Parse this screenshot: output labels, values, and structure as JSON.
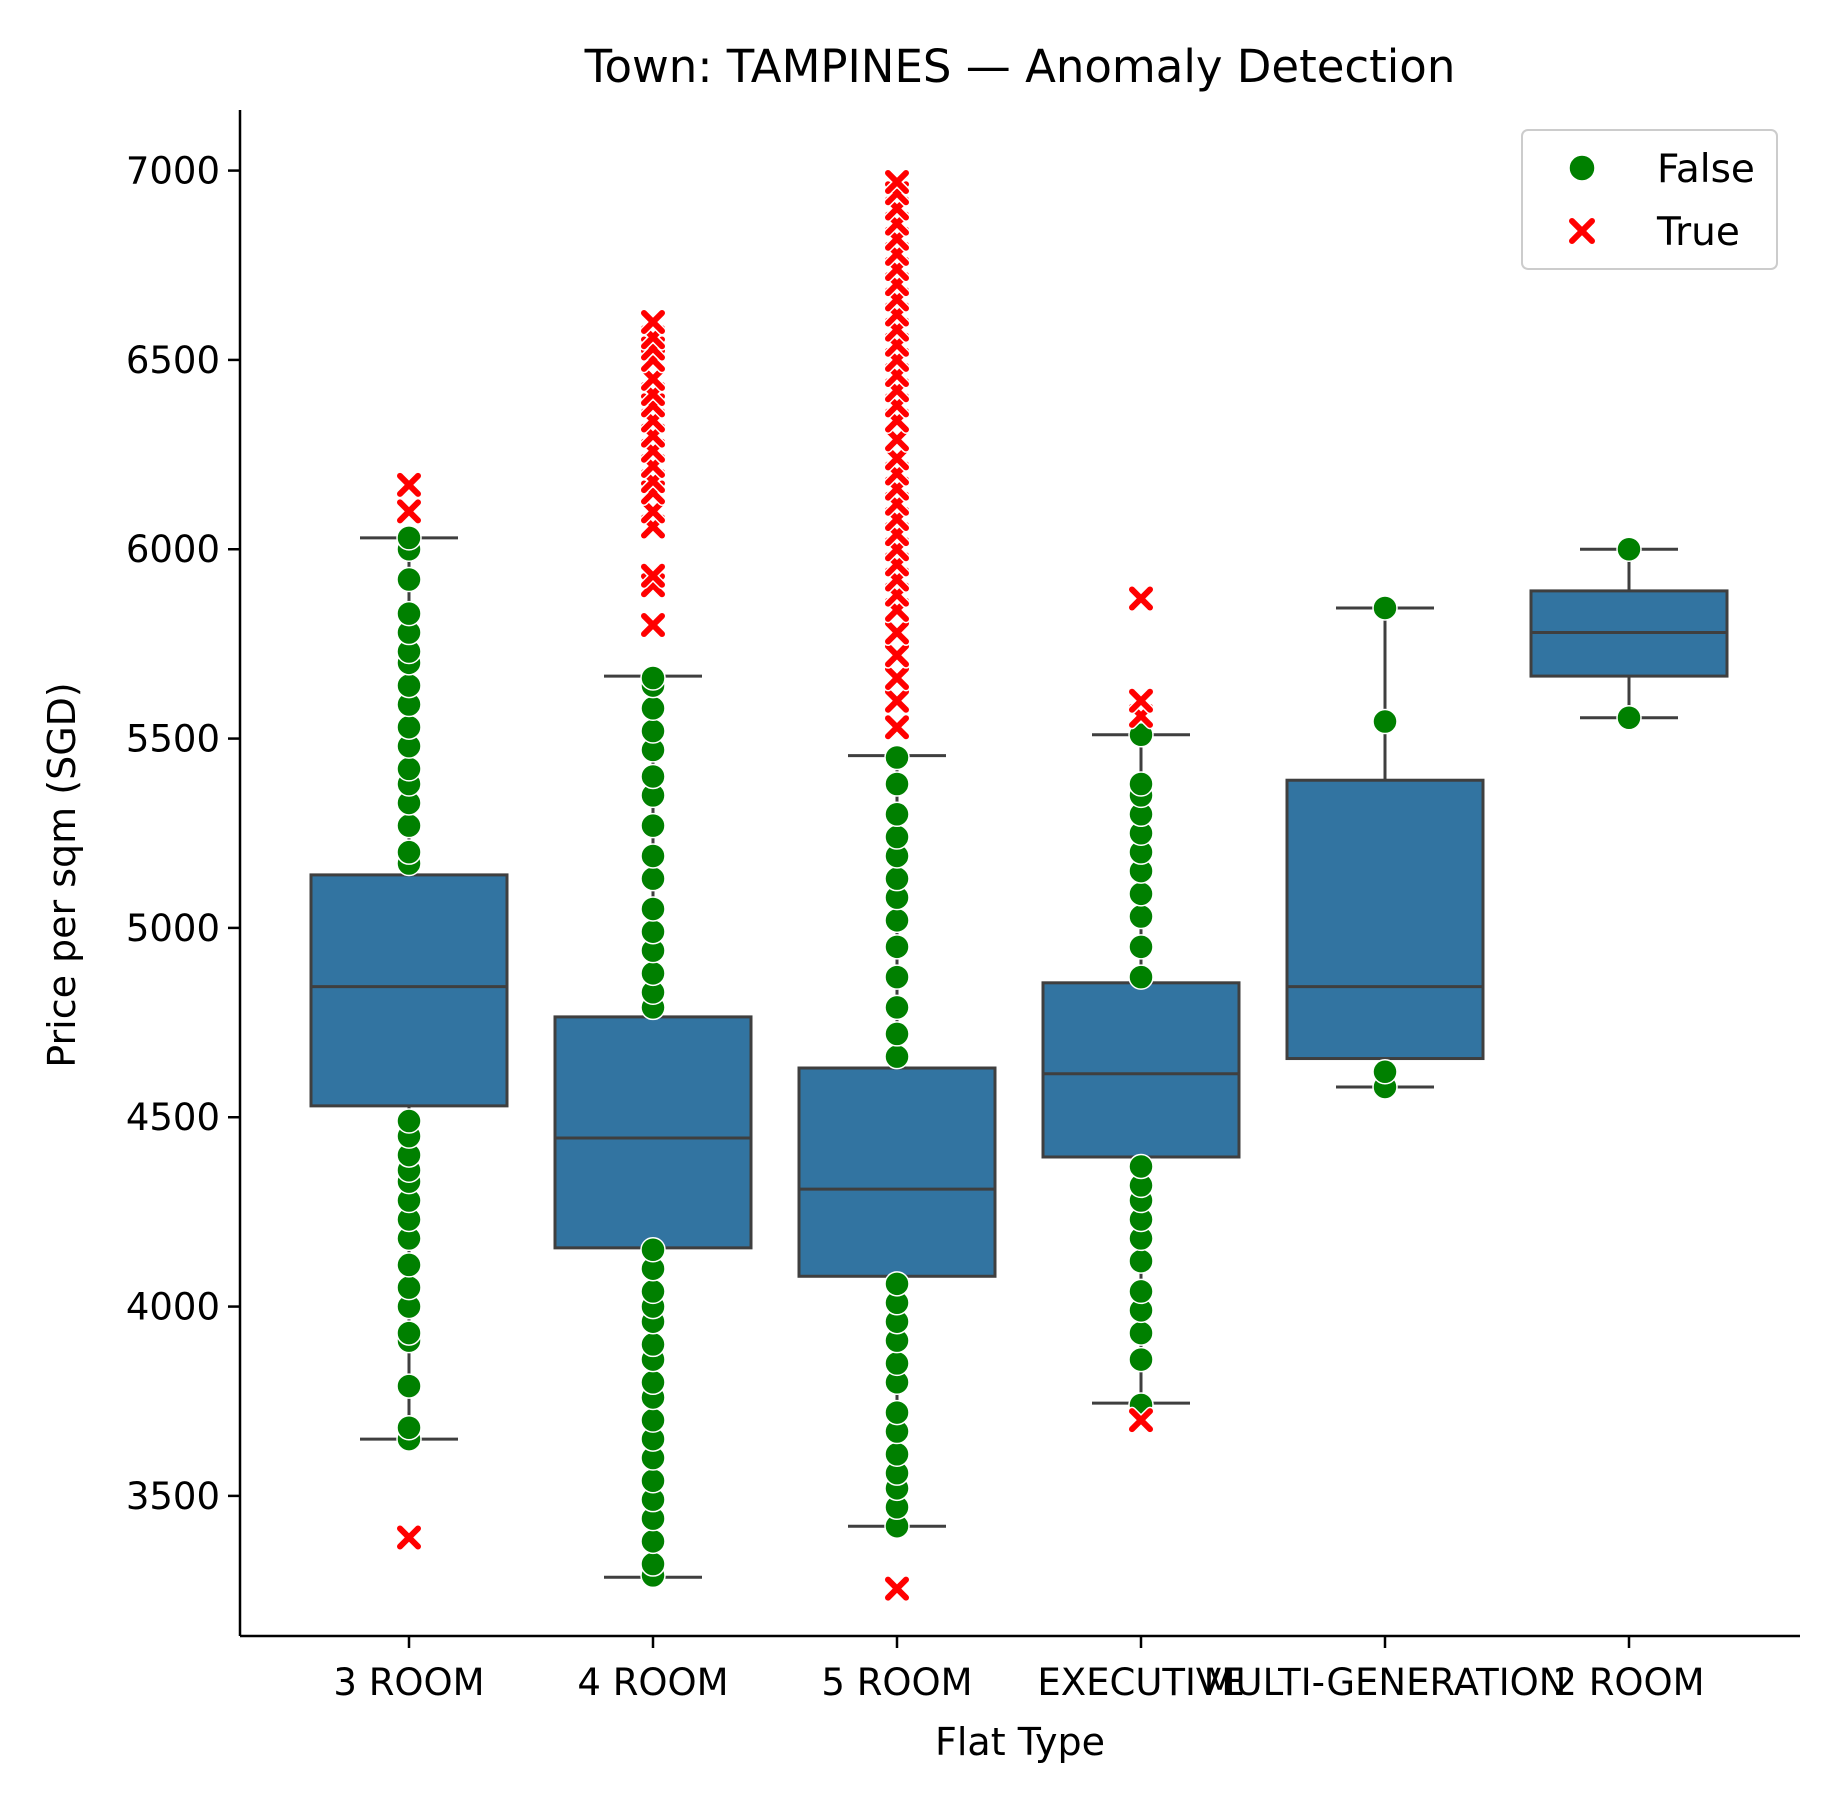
{
  "chart_data": {
    "type": "box",
    "title": "Town: TAMPINES — Anomaly Detection",
    "xlabel": "Flat Type",
    "ylabel": "Price per sqm (SGD)",
    "ylim": [
      3130,
      7160
    ],
    "yticks": [
      3500,
      4000,
      4500,
      5000,
      5500,
      6000,
      6500,
      7000
    ],
    "categories": [
      "3 ROOM",
      "4 ROOM",
      "5 ROOM",
      "EXECUTIVE",
      "MULTI-GENERATION",
      "2 ROOM"
    ],
    "boxes": [
      {
        "category": "3 ROOM",
        "whisker_low": 3650,
        "q1": 4530,
        "median": 4845,
        "q3": 5140,
        "whisker_high": 6030
      },
      {
        "category": "4 ROOM",
        "whisker_low": 3285,
        "q1": 4155,
        "median": 4445,
        "q3": 4765,
        "whisker_high": 5665
      },
      {
        "category": "5 ROOM",
        "whisker_low": 3420,
        "q1": 4080,
        "median": 4310,
        "q3": 4630,
        "whisker_high": 5455
      },
      {
        "category": "EXECUTIVE",
        "whisker_low": 3745,
        "q1": 4395,
        "median": 4615,
        "q3": 4855,
        "whisker_high": 5510
      },
      {
        "category": "MULTI-GENERATION",
        "whisker_low": 4580,
        "q1": 4655,
        "median": 4845,
        "q3": 5390,
        "whisker_high": 5845
      },
      {
        "category": "2 ROOM",
        "whisker_low": 5555,
        "q1": 5665,
        "median": 5780,
        "q3": 5890,
        "whisker_high": 6000
      }
    ],
    "series": [
      {
        "name": "False",
        "color": "#008000",
        "marker": "circle",
        "points": [
          {
            "category": "3 ROOM",
            "y": [
              3650,
              3680,
              3790,
              3910,
              3930,
              4000,
              4050,
              4110,
              4180,
              4230,
              4280,
              4330,
              4360,
              4400,
              4450,
              4490,
              5170,
              5200,
              5270,
              5330,
              5380,
              5420,
              5480,
              5530,
              5590,
              5640,
              5700,
              5730,
              5780,
              5830,
              5920,
              6000,
              6030
            ]
          },
          {
            "category": "4 ROOM",
            "y": [
              3290,
              3320,
              3380,
              3440,
              3490,
              3540,
              3600,
              3650,
              3700,
              3760,
              3800,
              3860,
              3900,
              3960,
              4000,
              4040,
              4100,
              4150,
              4790,
              4830,
              4880,
              4940,
              4990,
              5050,
              5130,
              5190,
              5270,
              5350,
              5400,
              5470,
              5520,
              5580,
              5640,
              5660
            ]
          },
          {
            "category": "5 ROOM",
            "y": [
              3420,
              3470,
              3520,
              3560,
              3610,
              3670,
              3720,
              3800,
              3850,
              3910,
              3960,
              4010,
              4060,
              4660,
              4720,
              4790,
              4870,
              4950,
              5020,
              5080,
              5130,
              5190,
              5240,
              5300,
              5380,
              5450
            ]
          },
          {
            "category": "EXECUTIVE",
            "y": [
              3740,
              3860,
              3930,
              3990,
              4040,
              4120,
              4180,
              4230,
              4280,
              4320,
              4370,
              4870,
              4950,
              5030,
              5090,
              5150,
              5200,
              5250,
              5300,
              5350,
              5380,
              5510
            ]
          },
          {
            "category": "MULTI-GENERATION",
            "y": [
              4580,
              4620,
              5545,
              5845
            ]
          },
          {
            "category": "2 ROOM",
            "y": [
              5555,
              6000
            ]
          }
        ]
      },
      {
        "name": "True",
        "color": "#ff0000",
        "marker": "x",
        "points": [
          {
            "category": "3 ROOM",
            "y": [
              3390,
              6100,
              6170
            ]
          },
          {
            "category": "4 ROOM",
            "y": [
              5800,
              5905,
              5930,
              6060,
              6100,
              6150,
              6180,
              6220,
              6260,
              6300,
              6340,
              6380,
              6410,
              6450,
              6500,
              6530,
              6560,
              6600
            ]
          },
          {
            "category": "5 ROOM",
            "y": [
              3255,
              5530,
              5600,
              5660,
              5720,
              5780,
              5840,
              5880,
              5920,
              5960,
              6000,
              6040,
              6080,
              6120,
              6160,
              6200,
              6240,
              6290,
              6340,
              6380,
              6420,
              6460,
              6500,
              6540,
              6580,
              6620,
              6660,
              6700,
              6740,
              6780,
              6820,
              6860,
              6900,
              6940,
              6970
            ]
          },
          {
            "category": "EXECUTIVE",
            "y": [
              3700,
              5560,
              5600,
              5870
            ]
          }
        ]
      }
    ],
    "legend": {
      "position": "top-right",
      "entries": [
        "False",
        "True"
      ]
    },
    "grid": false
  }
}
